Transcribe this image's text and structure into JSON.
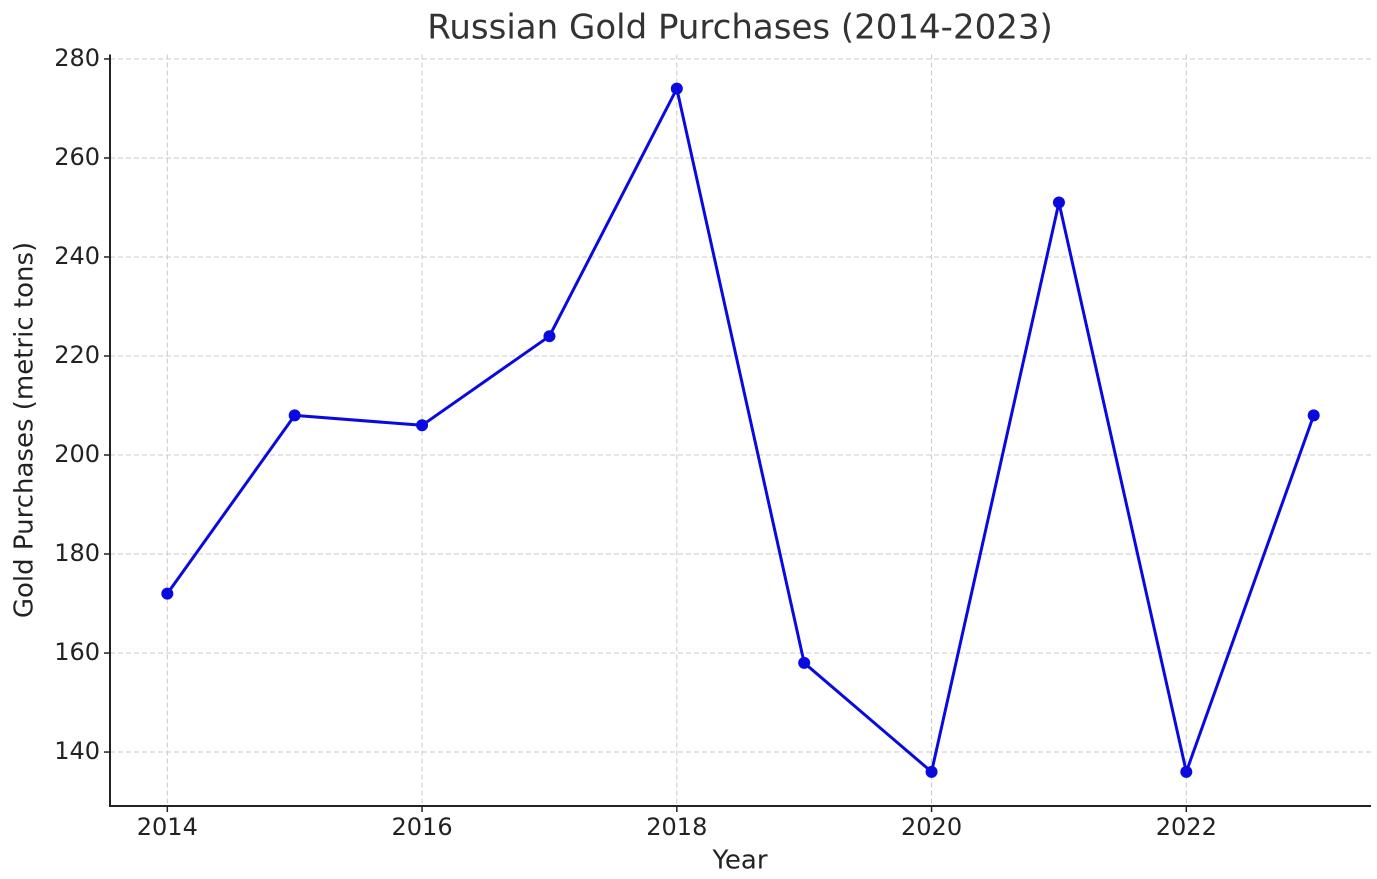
{
  "chart_data": {
    "type": "line",
    "title": "Russian Gold Purchases (2014-2023)",
    "x_label": "Year",
    "y_label": "Gold Purchases (metric tons)",
    "x": [
      2014,
      2015,
      2016,
      2017,
      2018,
      2019,
      2020,
      2021,
      2022,
      2023
    ],
    "series": [
      {
        "name": "Gold Purchases",
        "color": "#0a0ae0",
        "values": [
          172,
          208,
          206,
          224,
          274,
          158,
          136,
          251,
          136,
          208
        ]
      }
    ],
    "xlim": [
      2013.55,
      2023.45
    ],
    "xticks": [
      2014,
      2016,
      2018,
      2020,
      2022
    ],
    "ylim": [
      129.1,
      280.9
    ],
    "yticks": [
      140,
      160,
      180,
      200,
      220,
      240,
      260,
      280
    ],
    "grid": true
  }
}
